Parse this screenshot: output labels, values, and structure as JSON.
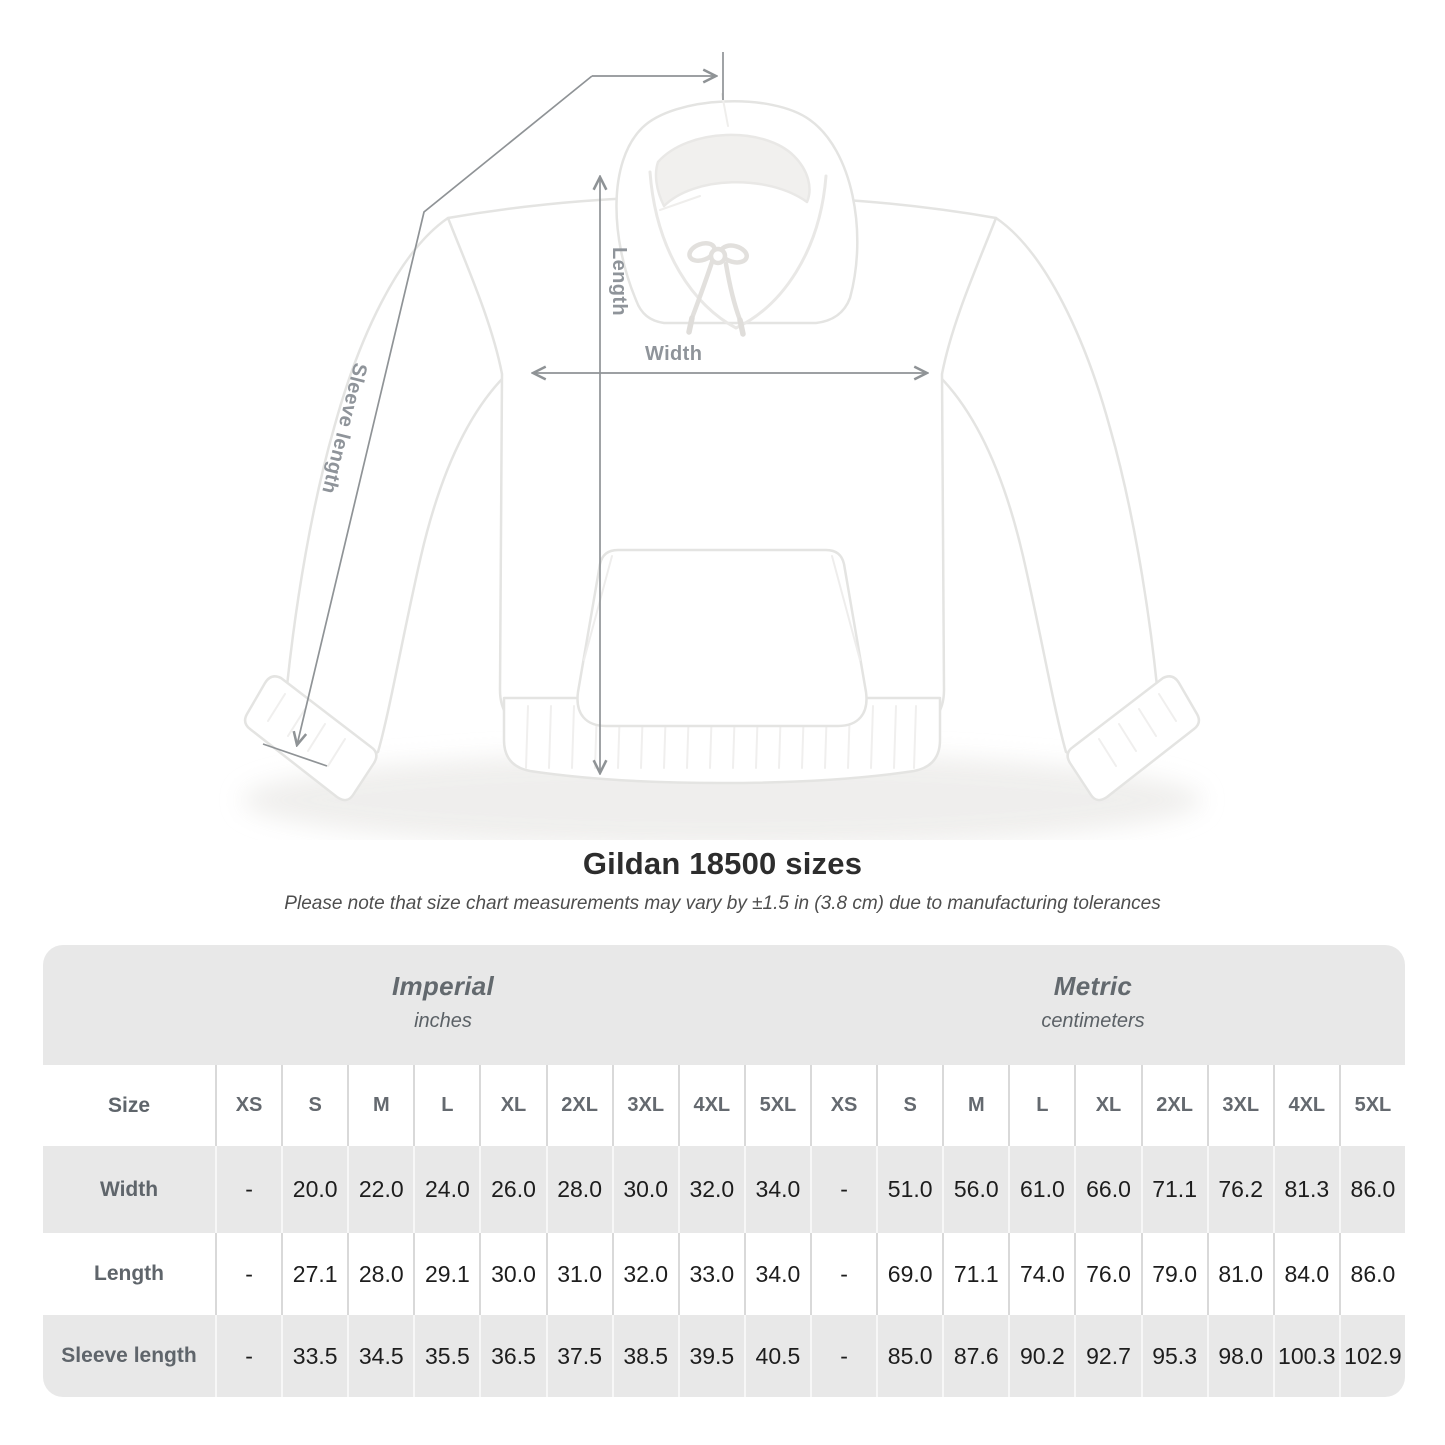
{
  "diagram": {
    "labels": {
      "length": "Length",
      "width": "Width",
      "sleeve": "Sleeve length"
    }
  },
  "chart_data": {
    "type": "table",
    "title": "Gildan 18500 sizes",
    "note": "Please note that size chart measurements may vary by ±1.5 in (3.8 cm) due to manufacturing tolerances",
    "size_header": "Size",
    "unit_groups": [
      {
        "name": "Imperial",
        "unit": "inches"
      },
      {
        "name": "Metric",
        "unit": "centimeters"
      }
    ],
    "sizes": [
      "XS",
      "S",
      "M",
      "L",
      "XL",
      "2XL",
      "3XL",
      "4XL",
      "5XL"
    ],
    "rows": [
      {
        "label": "Width",
        "imperial": [
          "-",
          "20.0",
          "22.0",
          "24.0",
          "26.0",
          "28.0",
          "30.0",
          "32.0",
          "34.0"
        ],
        "metric": [
          "-",
          "51.0",
          "56.0",
          "61.0",
          "66.0",
          "71.1",
          "76.2",
          "81.3",
          "86.0"
        ]
      },
      {
        "label": "Length",
        "imperial": [
          "-",
          "27.1",
          "28.0",
          "29.1",
          "30.0",
          "31.0",
          "32.0",
          "33.0",
          "34.0"
        ],
        "metric": [
          "-",
          "69.0",
          "71.1",
          "74.0",
          "76.0",
          "79.0",
          "81.0",
          "84.0",
          "86.0"
        ]
      },
      {
        "label": "Sleeve length",
        "imperial": [
          "-",
          "33.5",
          "34.5",
          "35.5",
          "36.5",
          "37.5",
          "38.5",
          "39.5",
          "40.5"
        ],
        "metric": [
          "-",
          "85.0",
          "87.6",
          "90.2",
          "92.7",
          "95.3",
          "98.0",
          "100.3",
          "102.9"
        ]
      }
    ]
  },
  "colors": {
    "table_band": "#e8e8e8",
    "row_alt": "#e8e8e8",
    "arrow": "#8f9396",
    "diagram_label": "#8f949a",
    "title_text": "#2d2d2d"
  }
}
